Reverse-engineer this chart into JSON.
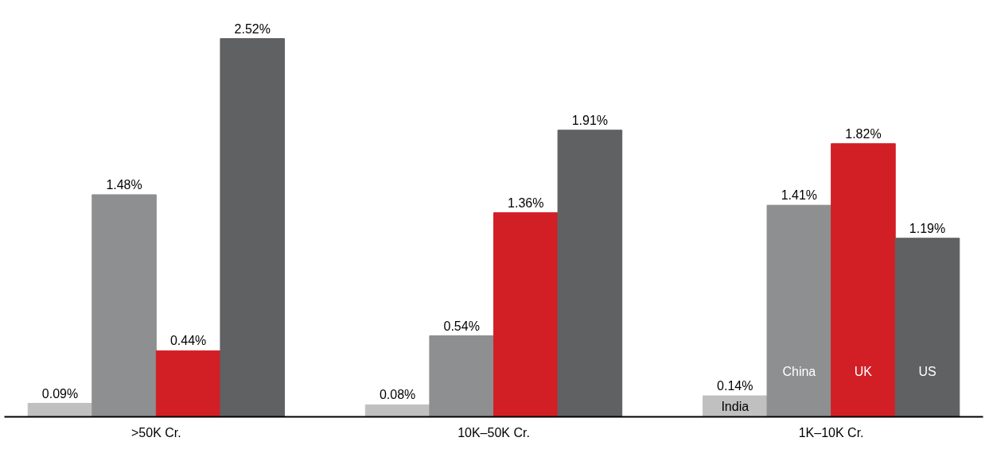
{
  "chart_data": {
    "type": "bar",
    "categories": [
      ">50K Cr.",
      "10K–50K Cr.",
      "1K–10K Cr."
    ],
    "series": [
      {
        "name": "India",
        "color": "#c0c0c0",
        "values": [
          0.09,
          0.08,
          0.14
        ],
        "value_labels": [
          "0.09%",
          "0.08%",
          "0.14%"
        ]
      },
      {
        "name": "China",
        "color": "#8e8f90",
        "values": [
          1.48,
          0.54,
          1.41
        ],
        "value_labels": [
          "1.48%",
          "0.54%",
          "1.41%"
        ]
      },
      {
        "name": "UK",
        "color": "#d21f26",
        "values": [
          0.44,
          1.36,
          1.82
        ],
        "value_labels": [
          "0.44%",
          "1.36%",
          "1.82%"
        ]
      },
      {
        "name": "US",
        "color": "#5f6163",
        "values": [
          2.52,
          1.91,
          1.19
        ],
        "value_labels": [
          "2.52%",
          "1.91%",
          "1.19%"
        ]
      }
    ],
    "grid": false
  }
}
